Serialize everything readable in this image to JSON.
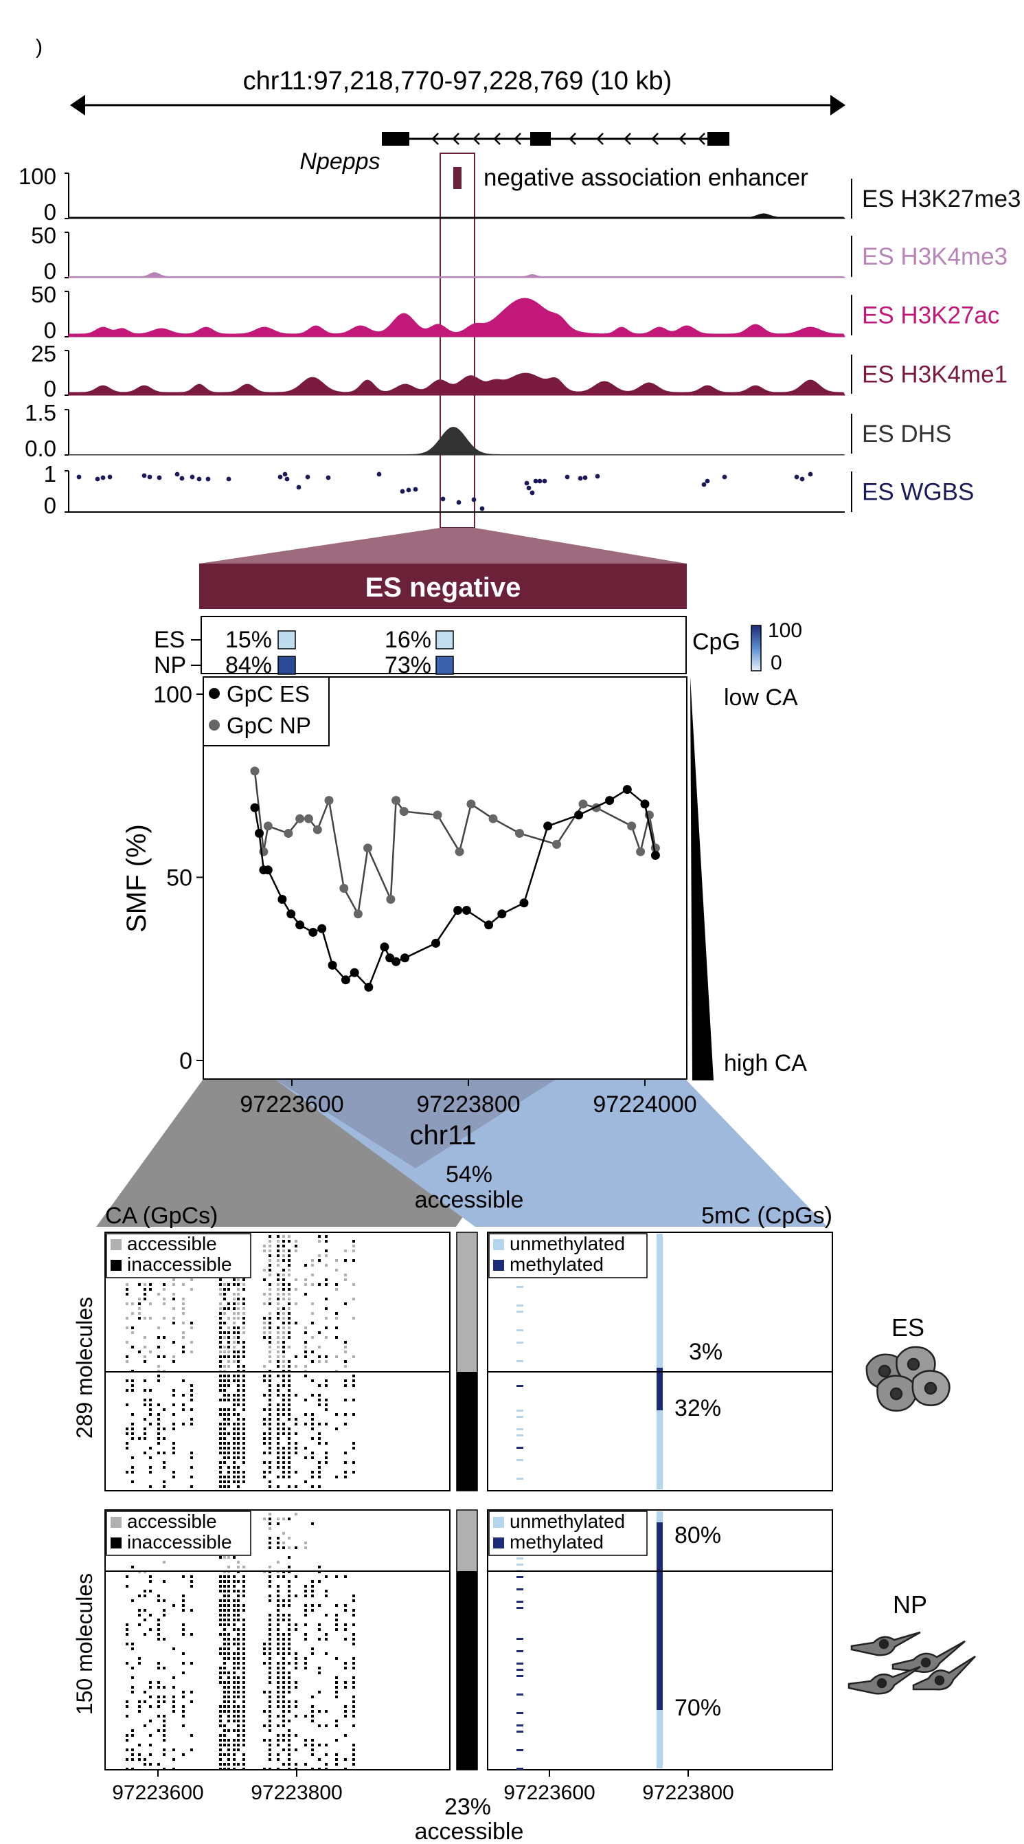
{
  "panel_label": ")",
  "locus": {
    "coordinates": "chr11:97,218,770-97,228,769 (10 kb)",
    "gene": "Npepps"
  },
  "enhancer_legend": "negative association enhancer",
  "tracks": [
    {
      "name": "ES H3K27me3",
      "max": "100",
      "min": "0",
      "color": "#111111"
    },
    {
      "name": "ES H3K4me3",
      "max": "50",
      "min": "0",
      "color": "#b784b7"
    },
    {
      "name": "ES H3K27ac",
      "max": "50",
      "min": "0",
      "color": "#c2187a"
    },
    {
      "name": "ES H3K4me1",
      "max": "25",
      "min": "0",
      "color": "#7a1a3f"
    },
    {
      "name": "ES DHS",
      "max": "1.5",
      "min": "0.0",
      "color": "#333333"
    },
    {
      "name": "ES WGBS",
      "max": "1",
      "min": "0",
      "color": "#1a1a5a"
    }
  ],
  "zoom_title": "ES negative",
  "cpg_summary": {
    "rows": [
      {
        "label": "ES",
        "a": "15%",
        "b": "16%",
        "colorA": "#bfdcee",
        "colorB": "#c2deef"
      },
      {
        "label": "NP",
        "a": "84%",
        "b": "73%",
        "colorA": "#2b4a96",
        "colorB": "#3d62ad"
      }
    ],
    "scale_label": "CpG",
    "scale_max": "100",
    "scale_min": "0"
  },
  "ca_scale": {
    "top": "low CA",
    "bottom": "high CA"
  },
  "smf_chart": {
    "ylabel": "SMF (%)",
    "xlabel": "chr11",
    "yticks": [
      "100",
      "50",
      "0"
    ],
    "xticks": [
      "97223600",
      "97223800",
      "97224000"
    ]
  },
  "chart_data": {
    "type": "line",
    "xlabel": "chr11",
    "ylabel": "SMF (%)",
    "xlim": [
      97223500,
      97224050
    ],
    "ylim": [
      0,
      100
    ],
    "legend_position": "top-left",
    "series": [
      {
        "name": "GpC ES",
        "color": "#000000",
        "x": [
          97223558,
          97223563,
          97223568,
          97223573,
          97223589,
          97223599,
          97223609,
          97223624,
          97223634,
          97223646,
          97223661,
          97223671,
          97223687,
          97223705,
          97223711,
          97223718,
          97223728,
          97223763,
          97223788,
          97223798,
          97223823,
          97223838,
          97223863,
          97223890,
          97223925,
          97223960,
          97223980,
          97224000,
          97224012
        ],
        "y": [
          69,
          62,
          52,
          52,
          44,
          40,
          37,
          35,
          36,
          26,
          22,
          24,
          20,
          31,
          28,
          27,
          28,
          32,
          41,
          41,
          37,
          40,
          43,
          64,
          67,
          71,
          74,
          70,
          56
        ]
      },
      {
        "name": "GpC NP",
        "color": "#555555",
        "x": [
          97223558,
          97223568,
          97223573,
          97223596,
          97223609,
          97223619,
          97223629,
          97223642,
          97223659,
          97223675,
          97223686,
          97223712,
          97223718,
          97223727,
          97223765,
          97223790,
          97223803,
          97223828,
          97223858,
          97223900,
          97223930,
          97223945,
          97223985,
          97223995,
          97224005,
          97224012
        ],
        "y": [
          79,
          57,
          64,
          62,
          66,
          66,
          63,
          71,
          47,
          40,
          58,
          44,
          71,
          68,
          67,
          57,
          70,
          66,
          62,
          59,
          70,
          69,
          64,
          57,
          67,
          58
        ]
      }
    ]
  },
  "lower": {
    "ca_title": "CA (GpCs)",
    "mc_title": "5mC (CpGs)",
    "top_accessible": "54%",
    "bottom_accessible": "23%",
    "accessible_word": "accessible",
    "ca_legend": [
      "accessible",
      "inaccessible"
    ],
    "mc_legend": [
      "unmethylated",
      "methylated"
    ],
    "es_molecules": "289 molecules",
    "np_molecules": "150 molecules",
    "es_pct_top": "3%",
    "es_pct_bottom": "32%",
    "np_pct_top": "80%",
    "np_pct_bottom": "70%",
    "cell_es": "ES",
    "cell_np": "NP",
    "ca_xticks": [
      "97223600",
      "97223800"
    ],
    "mc_xticks": [
      "97223600",
      "97223800"
    ]
  },
  "colors": {
    "maroon": "#6b2238",
    "grey_fan": "#8c8c8c",
    "blue_fan": "#9cb8dc",
    "light_blue": "#b3d6ee",
    "navy": "#1c2a78",
    "acc_grey": "#b0b0b0"
  }
}
